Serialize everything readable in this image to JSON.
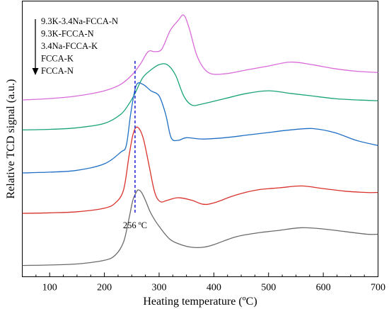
{
  "chart_data": {
    "type": "line",
    "xlabel": "Heating temperature (ºC)",
    "ylabel": "Relative TCD signal (a.u.)",
    "xlim": [
      50,
      700
    ],
    "xticks": [
      100,
      200,
      300,
      400,
      500,
      600,
      700
    ],
    "y_ticks_shown": false,
    "legend": {
      "placement": "top-left",
      "arrow": "down",
      "entries": [
        "9.3K-3.4Na-FCCA-N",
        "9.3K-FCCA-N",
        "3.4Na-FCCA-K",
        "FCCA-K",
        "FCCA-N"
      ]
    },
    "annotation": {
      "text": "256 ºC",
      "x": 256,
      "line_style": "dashed",
      "line_color": "#2b2bd6"
    },
    "series": [
      {
        "name": "9.3K-3.4Na-FCCA-N",
        "color": "#d96bd9",
        "x": [
          50,
          100,
          150,
          200,
          230,
          250,
          265,
          280,
          292,
          305,
          320,
          335,
          345,
          355,
          370,
          390,
          420,
          460,
          500,
          540,
          580,
          620,
          660,
          700
        ],
        "y": [
          0.655,
          0.66,
          0.67,
          0.69,
          0.715,
          0.75,
          0.79,
          0.84,
          0.84,
          0.85,
          0.92,
          0.96,
          0.98,
          0.93,
          0.82,
          0.76,
          0.755,
          0.77,
          0.785,
          0.8,
          0.79,
          0.775,
          0.765,
          0.76
        ]
      },
      {
        "name": "9.3K-FCCA-N",
        "color": "#1aa37a",
        "x": [
          50,
          100,
          150,
          200,
          230,
          245,
          256,
          270,
          285,
          300,
          315,
          330,
          345,
          360,
          380,
          420,
          460,
          500,
          540,
          580,
          620,
          660,
          700
        ],
        "y": [
          0.54,
          0.542,
          0.548,
          0.565,
          0.6,
          0.64,
          0.68,
          0.74,
          0.77,
          0.79,
          0.79,
          0.75,
          0.67,
          0.635,
          0.64,
          0.66,
          0.68,
          0.69,
          0.68,
          0.67,
          0.66,
          0.655,
          0.652
        ]
      },
      {
        "name": "3.4Na-FCCA-K",
        "color": "#1f6fc4",
        "x": [
          50,
          100,
          150,
          200,
          230,
          240,
          248,
          258,
          270,
          285,
          300,
          312,
          322,
          335,
          350,
          380,
          420,
          460,
          500,
          540,
          580,
          620,
          660,
          700
        ],
        "y": [
          0.375,
          0.378,
          0.385,
          0.41,
          0.455,
          0.48,
          0.6,
          0.71,
          0.715,
          0.69,
          0.67,
          0.6,
          0.51,
          0.5,
          0.51,
          0.505,
          0.51,
          0.52,
          0.53,
          0.54,
          0.545,
          0.53,
          0.5,
          0.48
        ]
      },
      {
        "name": "FCCA-K",
        "color": "#d9312b",
        "x": [
          50,
          100,
          150,
          200,
          220,
          235,
          245,
          252,
          258,
          265,
          272,
          282,
          292,
          302,
          315,
          335,
          360,
          380,
          400,
          440,
          480,
          520,
          560,
          600,
          640,
          680,
          700
        ],
        "y": [
          0.22,
          0.222,
          0.226,
          0.24,
          0.26,
          0.31,
          0.44,
          0.52,
          0.55,
          0.54,
          0.5,
          0.4,
          0.3,
          0.265,
          0.27,
          0.28,
          0.27,
          0.255,
          0.26,
          0.29,
          0.31,
          0.318,
          0.325,
          0.315,
          0.305,
          0.3,
          0.3
        ]
      },
      {
        "name": "FCCA-N",
        "color": "#6b6b6b",
        "x": [
          50,
          100,
          150,
          200,
          220,
          235,
          245,
          252,
          258,
          262,
          268,
          275,
          285,
          300,
          320,
          340,
          360,
          380,
          400,
          440,
          480,
          520,
          560,
          600,
          640,
          680,
          700
        ],
        "y": [
          0.02,
          0.022,
          0.026,
          0.04,
          0.06,
          0.11,
          0.2,
          0.27,
          0.3,
          0.31,
          0.3,
          0.27,
          0.22,
          0.17,
          0.12,
          0.1,
          0.09,
          0.09,
          0.1,
          0.13,
          0.145,
          0.155,
          0.165,
          0.16,
          0.15,
          0.14,
          0.14
        ]
      }
    ]
  }
}
